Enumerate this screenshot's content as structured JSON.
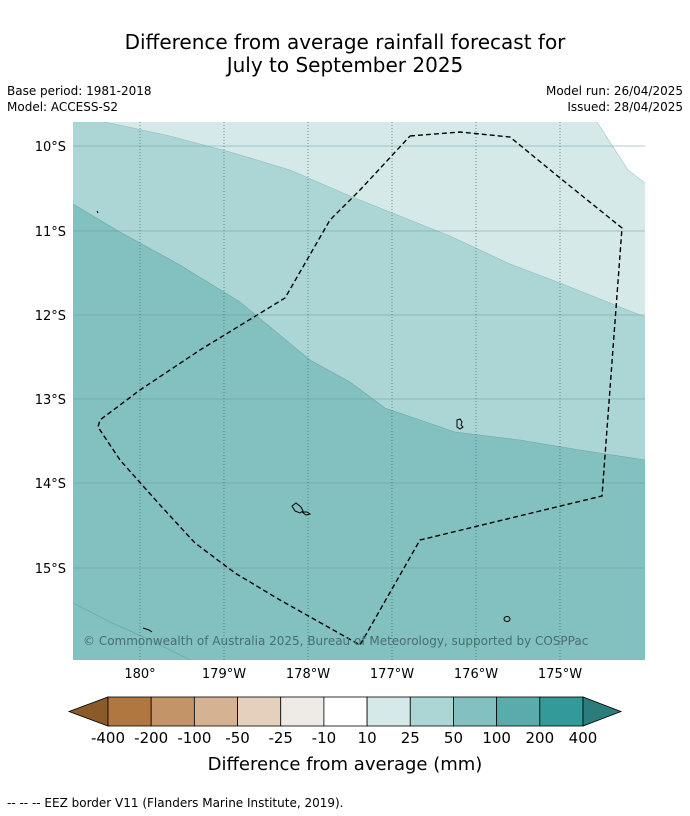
{
  "title": {
    "line1": "Difference from average rainfall forecast for",
    "line2": "July to September 2025"
  },
  "meta": {
    "base_period": "Base period: 1981-2018",
    "model": "Model: ACCESS-S2",
    "model_run": "Model run: 26/04/2025",
    "issued": "Issued: 28/04/2025"
  },
  "map": {
    "lat_labels": [
      "10°S",
      "11°S",
      "12°S",
      "13°S",
      "14°S",
      "15°S"
    ],
    "lon_labels": [
      "180°",
      "179°W",
      "178°W",
      "177°W",
      "176°W",
      "175°W"
    ],
    "copyright": "© Commonwealth of Australia 2025, Bureau of Meteorology, supported by COSPPac"
  },
  "legend": {
    "title": "Difference from average (mm)",
    "tick_labels": [
      "-400",
      "-200",
      "-100",
      "-50",
      "-25",
      "-10",
      "10",
      "25",
      "50",
      "100",
      "200",
      "400"
    ],
    "colors": [
      "#8a5a2b",
      "#b07840",
      "#c39468",
      "#d4b292",
      "#e4d0bd",
      "#eeebe7",
      "#ffffff",
      "#d5e9e9",
      "#acd6d6",
      "#83c0c0",
      "#5aabab",
      "#339a99",
      "#2b7d7b"
    ]
  },
  "footer": "--  --  -- EEZ border V11 (Flanders Marine Institute, 2019)."
}
